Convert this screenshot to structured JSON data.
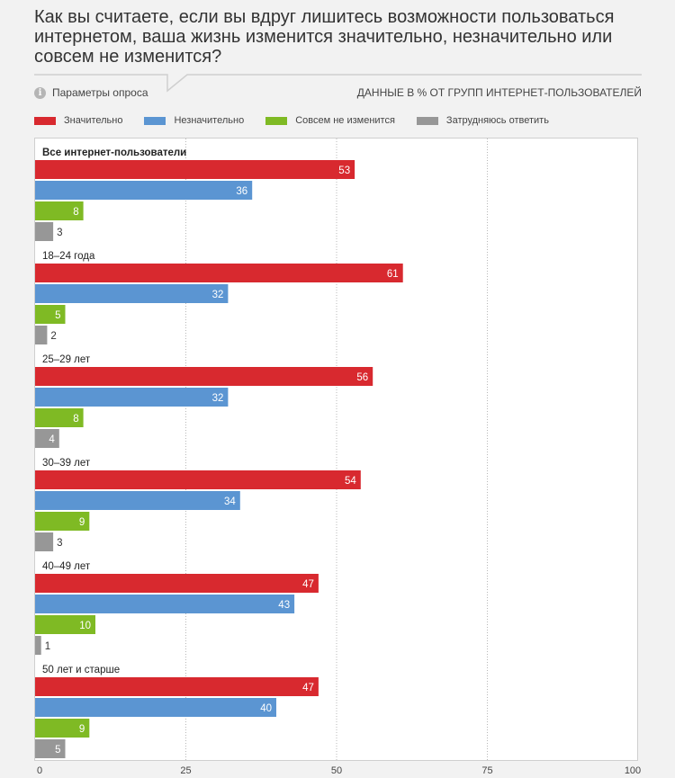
{
  "title": "Как вы считаете, если вы вдруг лишитесь возможности пользоваться интернетом, ваша жизнь изменится значительно, незначительно или совсем не изменится?",
  "params_label": "Параметры опроса",
  "data_note": "ДАННЫЕ В % ОТ ГРУПП ИНТЕРНЕТ-ПОЛЬЗОВАТЕЛЕЙ",
  "colors": {
    "significant": "#d8292f",
    "insignificant": "#5b95d2",
    "not_at_all": "#7fba24",
    "hard_to_say": "#979797"
  },
  "legend": [
    {
      "label": "Значительно",
      "color": "#d8292f"
    },
    {
      "label": "Незначительно",
      "color": "#5b95d2"
    },
    {
      "label": "Совсем не изменится",
      "color": "#7fba24"
    },
    {
      "label": "Затрудняюсь ответить",
      "color": "#979797"
    }
  ],
  "chart_data": {
    "type": "bar",
    "orientation": "horizontal",
    "xlim": [
      0,
      100
    ],
    "xticks": [
      "0",
      "25",
      "50",
      "75",
      "100"
    ],
    "grid": true,
    "legend_position": "top",
    "groups": [
      {
        "label": "Все интернет-пользователи",
        "values": [
          53,
          36,
          8,
          3
        ],
        "bold": true
      },
      {
        "label": "18–24 года",
        "values": [
          61,
          32,
          5,
          2
        ]
      },
      {
        "label": "25–29 лет",
        "values": [
          56,
          32,
          8,
          4
        ]
      },
      {
        "label": "30–39 лет",
        "values": [
          54,
          34,
          9,
          3
        ]
      },
      {
        "label": "40–49 лет",
        "values": [
          47,
          43,
          10,
          1
        ]
      },
      {
        "label": "50 лет и старше",
        "values": [
          47,
          40,
          9,
          5
        ]
      }
    ],
    "series": [
      {
        "name": "Значительно",
        "color": "#d8292f"
      },
      {
        "name": "Незначительно",
        "color": "#5b95d2"
      },
      {
        "name": "Совсем не изменится",
        "color": "#7fba24"
      },
      {
        "name": "Затрудняюсь ответить",
        "color": "#979797"
      }
    ]
  }
}
